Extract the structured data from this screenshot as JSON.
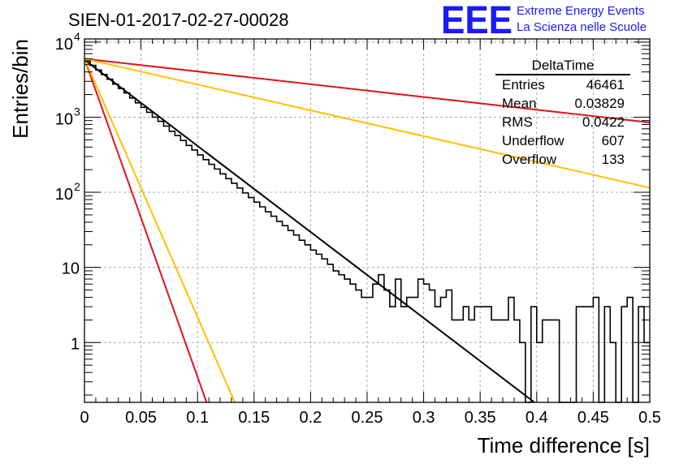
{
  "chart_data": {
    "type": "line",
    "title": "SIEN-01-2017-02-27-00028",
    "xlabel": "Time difference [s]",
    "ylabel": "Entries/bin",
    "xlim": [
      0,
      0.5
    ],
    "ylim": [
      0.16,
      11000
    ],
    "yscale": "log",
    "grid": true,
    "x_ticks": [
      "0",
      "0.05",
      "0.1",
      "0.15",
      "0.2",
      "0.25",
      "0.3",
      "0.35",
      "0.4",
      "0.45",
      "0.5"
    ],
    "y_ticks": [
      {
        "value": 1,
        "label": "1"
      },
      {
        "value": 10,
        "label": "10"
      },
      {
        "value": 100,
        "label": "10",
        "exp": "2"
      },
      {
        "value": 1000,
        "label": "10",
        "exp": "3"
      },
      {
        "value": 10000,
        "label": "10",
        "exp": "4"
      }
    ],
    "histogram": {
      "bin_width": 0.005,
      "values": [
        5600,
        4900,
        4250,
        3700,
        3200,
        2750,
        2400,
        2100,
        1800,
        1550,
        1350,
        1160,
        1000,
        880,
        760,
        650,
        570,
        490,
        420,
        365,
        315,
        272,
        236,
        204,
        176,
        152,
        132,
        114,
        98,
        85,
        74,
        64,
        55,
        48,
        41,
        36,
        31,
        27,
        23,
        20,
        17,
        15,
        13,
        11,
        9,
        8,
        7,
        6,
        5,
        4,
        4,
        6,
        8,
        5,
        3,
        7,
        3,
        4,
        4,
        7,
        6,
        5,
        3,
        4,
        5,
        2,
        2,
        3,
        2,
        3,
        3,
        3,
        2,
        2,
        2,
        4,
        2,
        1,
        0,
        3,
        1,
        2,
        2,
        2,
        0,
        0,
        0,
        3,
        3,
        3,
        4,
        0,
        3,
        1,
        0,
        3,
        4,
        0,
        3,
        1
      ],
      "color": "#000000"
    },
    "fits": [
      {
        "start": 5800,
        "end_x": 0.398,
        "end_y": 0.16,
        "color": "#000000"
      },
      {
        "start": 6000,
        "end_x": 0.108,
        "end_y": 0.16,
        "color": "#e0141a"
      },
      {
        "start": 6000,
        "end_x": 0.133,
        "end_y": 0.16,
        "color": "#ffc000"
      },
      {
        "start": 6000,
        "end_x": 0.5,
        "end_y": 850,
        "color": "#e0141a"
      },
      {
        "start": 6000,
        "end_x": 0.5,
        "end_y": 115,
        "color": "#ffc000"
      }
    ],
    "stats_box": {
      "title": "DeltaTime",
      "rows": [
        {
          "label": "Entries",
          "value": "46461"
        },
        {
          "label": "Mean",
          "value": "0.03829"
        },
        {
          "label": "RMS",
          "value": "0.0422"
        },
        {
          "label": "Underflow",
          "value": "607"
        },
        {
          "label": "Overflow",
          "value": "133"
        }
      ]
    }
  },
  "logo": {
    "mark": "EEE",
    "line1": "Extreme Energy Events",
    "line2": "La Scienza nelle Scuole",
    "color": "#1a1aff"
  }
}
